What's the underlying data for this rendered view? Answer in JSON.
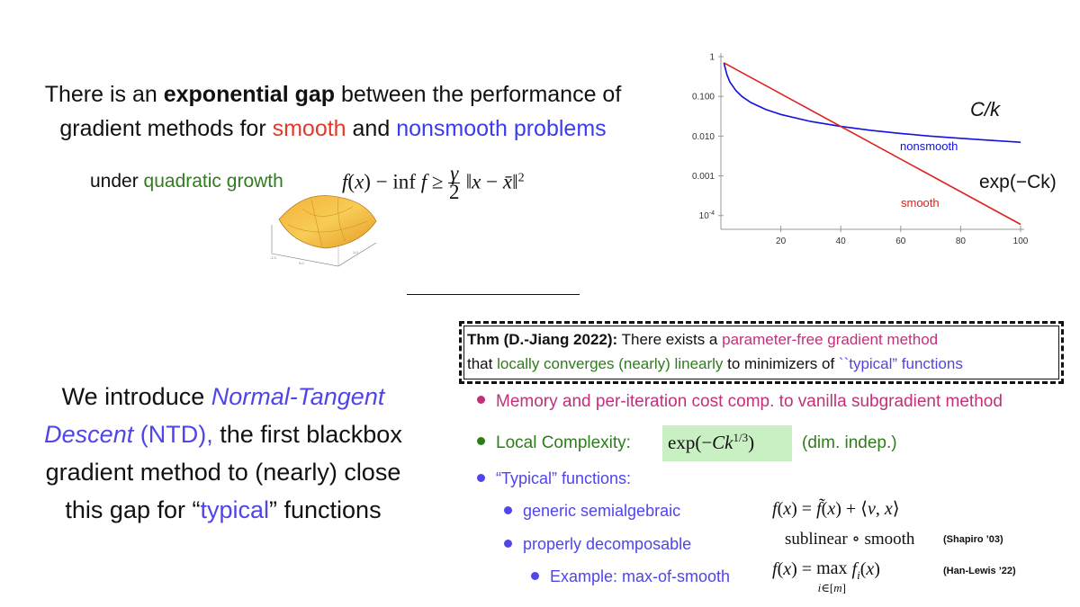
{
  "intro": {
    "line1_a": "There is an ",
    "line1_b": "exponential gap",
    "line1_c": " between the performance of",
    "line2_a": "gradient methods for ",
    "line2_b": "smooth",
    "line2_c": " and ",
    "line2_d": "nonsmooth problems"
  },
  "quadratic_growth": {
    "prefix": "under ",
    "highlight": "quadratic growth",
    "formula": "f(x) − inf f ≥ γ/2 ‖x − x̄‖²"
  },
  "chart_data": {
    "type": "line",
    "xlabel": "",
    "ylabel": "",
    "xlim": [
      0,
      100
    ],
    "ylim_log10": [
      -4.3,
      0
    ],
    "scale_y": "log",
    "x_ticks": [
      "20",
      "40",
      "60",
      "80",
      "100"
    ],
    "y_ticks": [
      "1",
      "0.100",
      "0.010",
      "0.001",
      "10^-4"
    ],
    "series": [
      {
        "name": "nonsmooth",
        "color": "#1212e0",
        "label_formula": "C/k",
        "x": [
          1,
          2,
          3,
          5,
          7,
          10,
          15,
          20,
          30,
          40,
          50,
          60,
          70,
          80,
          90,
          100
        ],
        "y": [
          0.7,
          0.35,
          0.23,
          0.14,
          0.1,
          0.07,
          0.047,
          0.035,
          0.0233,
          0.0175,
          0.014,
          0.0117,
          0.01,
          0.0088,
          0.0078,
          0.007
        ]
      },
      {
        "name": "smooth",
        "color": "#e02020",
        "label_formula": "exp(−Ck)",
        "x": [
          1,
          100
        ],
        "y": [
          0.7,
          6e-05
        ]
      }
    ]
  },
  "ntd": {
    "line1_a": "We introduce ",
    "line1_b": "Normal-Tangent",
    "line2_a": "Descent",
    "line2_b": " (NTD),",
    "line2_c": " the first blackbox",
    "line3": "gradient method to (nearly) close",
    "line4_a": "this gap for “",
    "line4_b": "typical",
    "line4_c": "” functions"
  },
  "theorem": {
    "label": "Thm (D.-Jiang 2022):",
    "text_a": " There exists a ",
    "text_b": "parameter-free gradient method",
    "text_c": "that ",
    "text_d": "locally converges (nearly) linearly",
    "text_e": " to minimizers of ",
    "text_f": "``typical” functions"
  },
  "bullets": {
    "memory": "Memory and per-iteration cost comp. to vanilla subgradient method",
    "local_complexity": "Local Complexity:",
    "complexity_formula": "exp(−Ck^1/3)",
    "dim_indep": "(dim. indep.)",
    "typical": "“Typical” functions:",
    "semialgebraic": "generic semialgebraic",
    "decomposable": "properly decomposable",
    "example": "Example: max-of-smooth"
  },
  "side_math": {
    "tilt": "f(x) = f̃(x) + ⟨v, x⟩",
    "sublinear": "sublinear ∘ smooth",
    "cite_shapiro": "(Shapiro ’03)",
    "max_formula": "f(x) = max_{i∈[m]} f_i(x)",
    "cite_hanlewis": "(Han-Lewis ’22)"
  },
  "colors": {
    "smooth": "#e03a2a",
    "nonsmooth": "#3b3bf0",
    "green": "#2f7d1e",
    "magenta": "#c0317a",
    "highlight_box": "#c9f0c2"
  }
}
